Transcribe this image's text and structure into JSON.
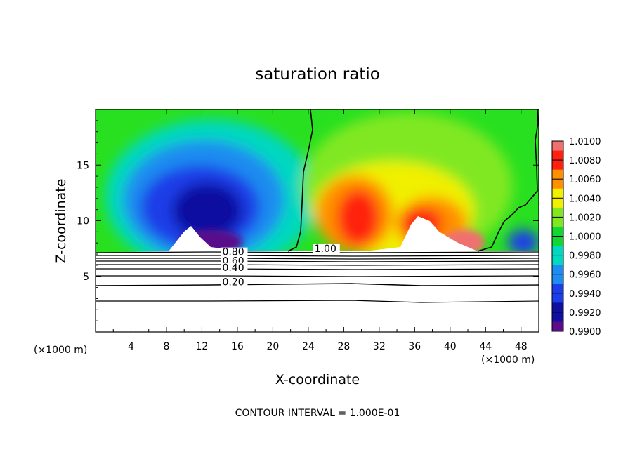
{
  "chart_data": {
    "type": "heatmap",
    "title": "saturation ratio",
    "xlabel": "X-coordinate",
    "ylabel": "Z-coordinate",
    "x_unit": "(×1000 m)",
    "xlim": [
      0,
      50
    ],
    "ylim": [
      0,
      20
    ],
    "x_ticks": [
      4,
      8,
      12,
      16,
      20,
      24,
      28,
      32,
      36,
      40,
      44,
      48
    ],
    "y_ticks": [
      5,
      10,
      15
    ],
    "footer": "CONTOUR INTERVAL = 1.000E-01",
    "colorbar": {
      "levels": [
        "0.9900",
        "0.9920",
        "0.9940",
        "0.9960",
        "0.9980",
        "1.0000",
        "1.0020",
        "1.0040",
        "1.0060",
        "1.0080",
        "1.0100"
      ],
      "colors": [
        "#5a0a8a",
        "#1010a0",
        "#1a3ee8",
        "#1e8cf0",
        "#00d8c0",
        "#10d830",
        "#80e820",
        "#f0f000",
        "#ff9000",
        "#ff2010",
        "#f07070"
      ]
    },
    "contour_labels": [
      {
        "text": "0.80",
        "x": 14.3,
        "y": 6.9
      },
      {
        "text": "0.60",
        "x": 14.3,
        "y": 6.1
      },
      {
        "text": "0.40",
        "x": 14.3,
        "y": 5.5
      },
      {
        "text": "0.20",
        "x": 14.3,
        "y": 4.2
      },
      {
        "text": "1.00",
        "x": 24.7,
        "y": 7.2
      }
    ]
  }
}
